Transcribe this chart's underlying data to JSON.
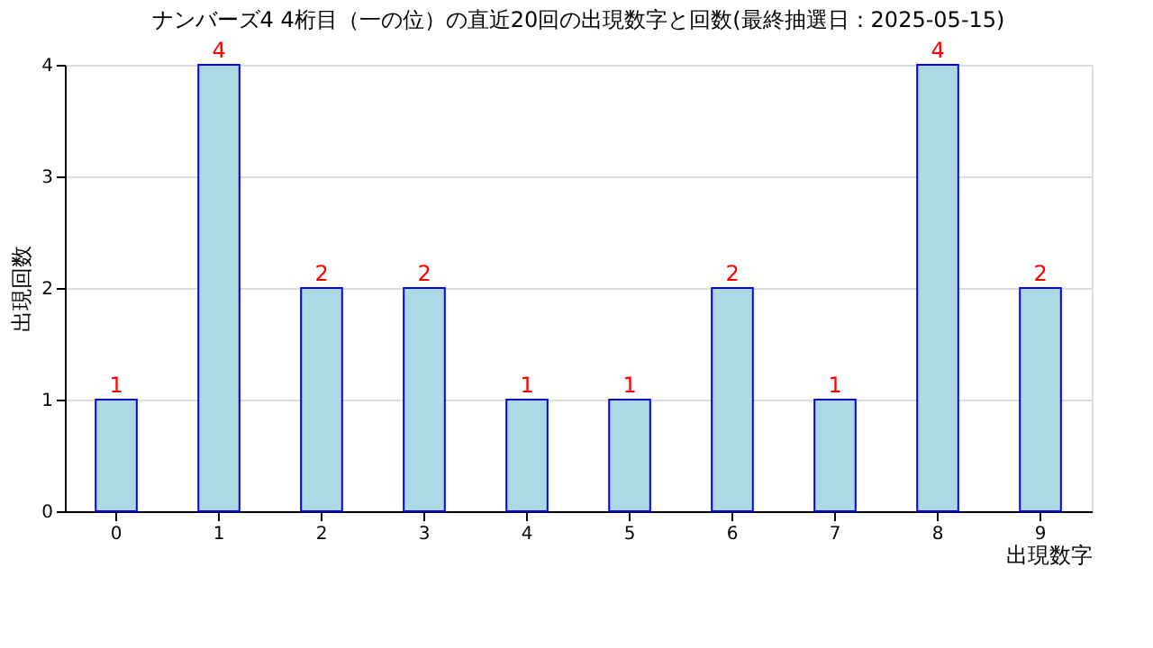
{
  "chart_data": {
    "type": "bar",
    "title": "ナンバーズ4 4桁目（一の位）の直近20回の出現数字と回数(最終抽選日：2025-05-15)",
    "xlabel": "出現数字",
    "ylabel": "出現回数",
    "categories": [
      "0",
      "1",
      "2",
      "3",
      "4",
      "5",
      "6",
      "7",
      "8",
      "9"
    ],
    "values": [
      1,
      4,
      2,
      2,
      1,
      1,
      2,
      1,
      4,
      2
    ],
    "color": "#add8e6",
    "ylim": [
      0,
      4
    ],
    "yticks": [
      0,
      1,
      2,
      3,
      4
    ],
    "grid": "y",
    "data_labels": true
  }
}
